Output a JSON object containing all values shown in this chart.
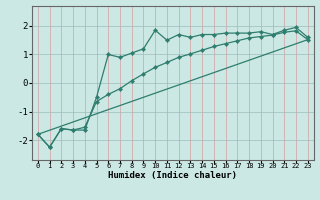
{
  "xlabel": "Humidex (Indice chaleur)",
  "background_color": "#cce8e4",
  "grid_color_v": "#ddbbbb",
  "grid_color_h": "#bbcccc",
  "line_color": "#2e7d6e",
  "xlim": [
    -0.5,
    23.5
  ],
  "ylim": [
    -2.7,
    2.7
  ],
  "yticks": [
    -2,
    -1,
    0,
    1,
    2
  ],
  "xticks": [
    0,
    1,
    2,
    3,
    4,
    5,
    6,
    7,
    8,
    9,
    10,
    11,
    12,
    13,
    14,
    15,
    16,
    17,
    18,
    19,
    20,
    21,
    22,
    23
  ],
  "line1_x": [
    0,
    1,
    2,
    3,
    4,
    5,
    6,
    7,
    8,
    9,
    10,
    11,
    12,
    13,
    14,
    15,
    16,
    17,
    18,
    19,
    20,
    21,
    22,
    23
  ],
  "line1_y": [
    -1.8,
    -2.25,
    -1.6,
    -1.65,
    -1.65,
    -0.5,
    1.0,
    0.9,
    1.05,
    1.2,
    1.85,
    1.5,
    1.7,
    1.6,
    1.7,
    1.7,
    1.75,
    1.75,
    1.75,
    1.8,
    1.7,
    1.85,
    1.95,
    1.6
  ],
  "line2_x": [
    0,
    1,
    2,
    3,
    4,
    5,
    6,
    7,
    8,
    9,
    10,
    11,
    12,
    13,
    14,
    15,
    16,
    17,
    18,
    19,
    20,
    21,
    22,
    23
  ],
  "line2_y": [
    -1.8,
    -2.25,
    -1.6,
    -1.65,
    -1.55,
    -0.65,
    -0.4,
    -0.2,
    0.08,
    0.32,
    0.55,
    0.72,
    0.9,
    1.02,
    1.15,
    1.28,
    1.38,
    1.48,
    1.58,
    1.63,
    1.68,
    1.78,
    1.83,
    1.52
  ],
  "line3_x": [
    0,
    23
  ],
  "line3_y": [
    -1.8,
    1.52
  ]
}
